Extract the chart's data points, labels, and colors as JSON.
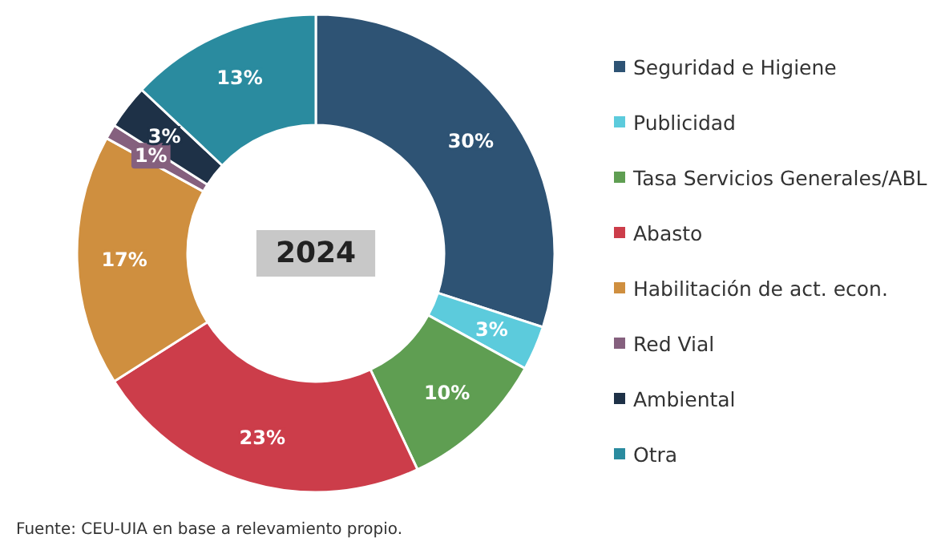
{
  "chart_data": {
    "type": "donut",
    "title": "2024",
    "categories": [
      "Seguridad e Higiene",
      "Publicidad",
      "Tasa Servicios Generales/ABL",
      "Abasto",
      "Habilitación de act. econ.",
      "Red Vial",
      "Ambiental",
      "Otra"
    ],
    "values": [
      30,
      3,
      10,
      23,
      17,
      1,
      3,
      13
    ],
    "colors": [
      "#2e5374",
      "#5ccbdc",
      "#5f9e52",
      "#cc3d4a",
      "#cf8f3f",
      "#85607e",
      "#1e3147",
      "#2a8b9f"
    ],
    "value_labels": [
      "30%",
      "3%",
      "10%",
      "23%",
      "17%",
      "1%",
      "3%",
      "13%"
    ],
    "legend": "right",
    "annotations": [
      "Fuente: CEU-UIA en base a relevamiento propio."
    ]
  }
}
